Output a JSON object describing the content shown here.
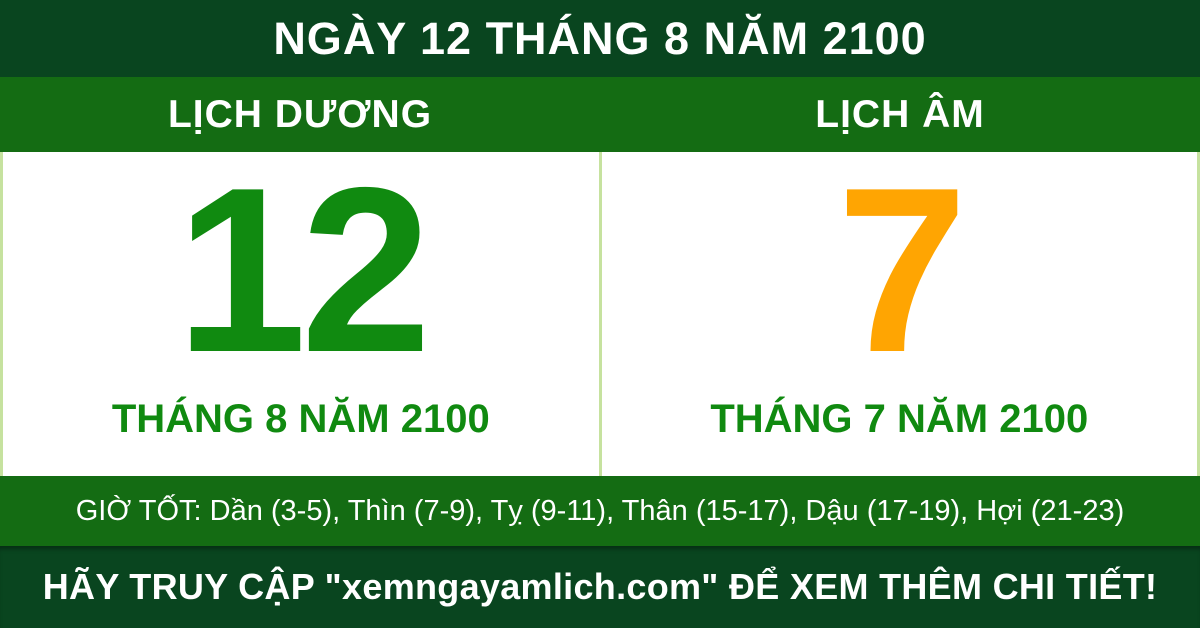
{
  "colors": {
    "dark_green": "#09451f",
    "medium_green": "#146c13",
    "bright_green": "#108a10",
    "orange": "#ffa502",
    "divider_green": "#c6e29f",
    "text_white": "#ffffff",
    "panel_white": "#ffffff"
  },
  "header": {
    "title": "NGÀY 12 THÁNG 8 NĂM 2100"
  },
  "calendar": {
    "solar": {
      "header": "LỊCH DƯƠNG",
      "day": "12",
      "month_year": "THÁNG 8 NĂM 2100"
    },
    "lunar": {
      "header": "LỊCH ÂM",
      "day": "7",
      "month_year": "THÁNG 7 NĂM 2100"
    }
  },
  "good_hours": {
    "text": "GIỜ TỐT: Dần (3-5), Thìn (7-9), Tỵ (9-11), Thân (15-17), Dậu (17-19), Hợi (21-23)"
  },
  "footer": {
    "text": "HÃY TRUY CẬP \"xemngayamlich.com\" ĐỂ XEM THÊM CHI TIẾT!"
  }
}
